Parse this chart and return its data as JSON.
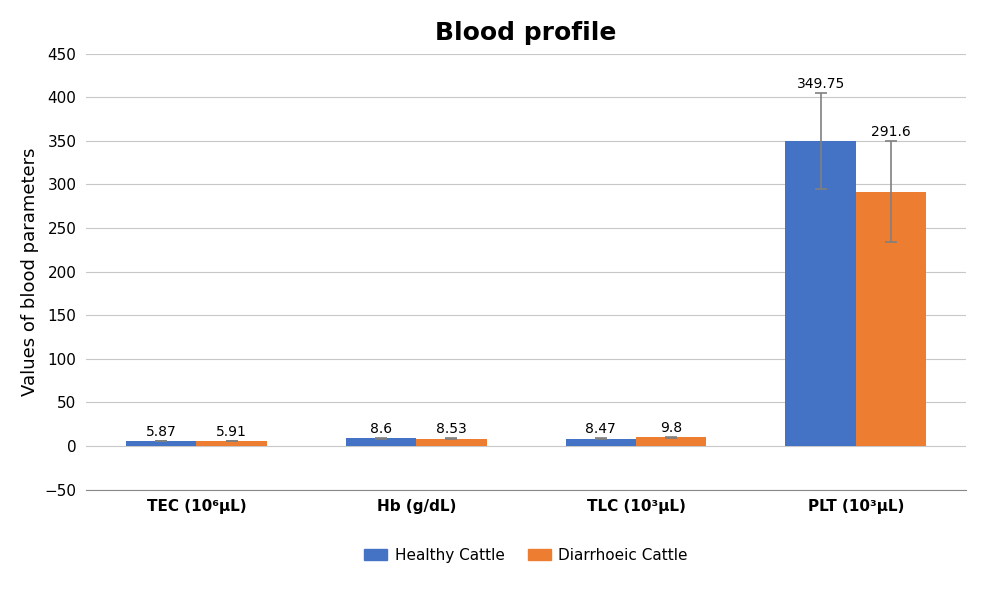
{
  "title": "Blood profile",
  "ylabel": "Values of blood parameters",
  "categories": [
    "TEC (10⁶μL)",
    "Hb (g/dL)",
    "TLC (10³μL)",
    "PLT (10³μL)"
  ],
  "healthy_values": [
    5.87,
    8.6,
    8.47,
    349.75
  ],
  "diarrhoea_values": [
    5.91,
    8.53,
    9.8,
    291.6
  ],
  "healthy_errors": [
    0.3,
    0.5,
    0.5,
    55.0
  ],
  "diarrhoea_errors": [
    0.3,
    0.7,
    0.6,
    58.0
  ],
  "healthy_color": "#4472C4",
  "diarrhoea_color": "#ED7D31",
  "bar_width": 0.32,
  "ylim": [
    -50,
    450
  ],
  "yticks": [
    -50,
    0,
    50,
    100,
    150,
    200,
    250,
    300,
    350,
    400,
    450
  ],
  "legend_labels": [
    "Healthy Cattle",
    "Diarrhoeic Cattle"
  ],
  "title_fontsize": 18,
  "axis_label_fontsize": 13,
  "tick_fontsize": 11,
  "annotation_fontsize": 10,
  "background_color": "#FFFFFF",
  "grid_color": "#C8C8C8"
}
